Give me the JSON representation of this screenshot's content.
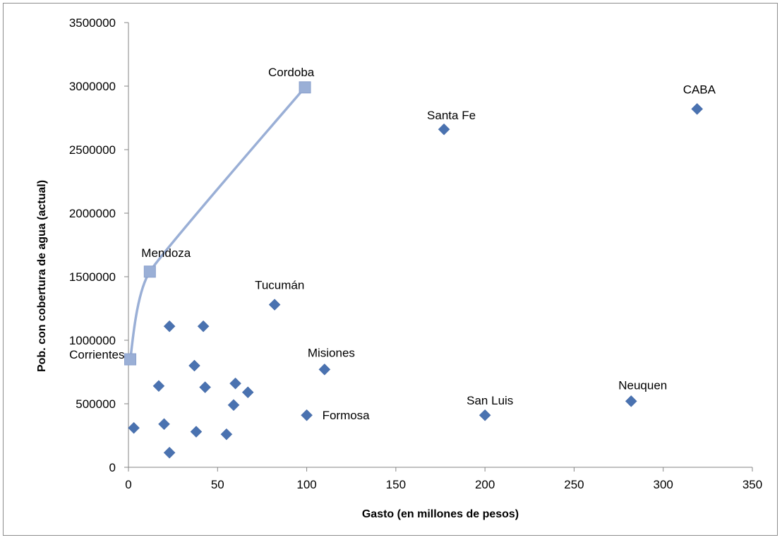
{
  "chart_data": {
    "type": "scatter",
    "xlabel": "Gasto  (en millones de pesos)",
    "ylabel": "Pob. con cobertura de agua (actual)",
    "xlim": [
      0,
      350
    ],
    "ylim": [
      0,
      3500000
    ],
    "x_ticks": [
      "0",
      "50",
      "100",
      "150",
      "200",
      "250",
      "300",
      "350"
    ],
    "y_ticks": [
      "0",
      "500000",
      "1000000",
      "1500000",
      "2000000",
      "2500000",
      "3000000",
      "3500000"
    ],
    "grid": false,
    "legend": "none",
    "colors": {
      "diamond": "#4a72b0",
      "line": "#9aafd6",
      "square": "#9aafd6"
    },
    "series": [
      {
        "marker": "diamond",
        "points": [
          {
            "x": 319,
            "y": 2820000,
            "label": "CABA"
          },
          {
            "x": 177,
            "y": 2660000,
            "label": "Santa Fe"
          },
          {
            "x": 82,
            "y": 1280000,
            "label": "Tucumán"
          },
          {
            "x": 110,
            "y": 770000,
            "label": "Misiones"
          },
          {
            "x": 100,
            "y": 410000,
            "label": "Formosa"
          },
          {
            "x": 200,
            "y": 410000,
            "label": "San Luis"
          },
          {
            "x": 282,
            "y": 520000,
            "label": "Neuquen"
          },
          {
            "x": 23,
            "y": 1110000,
            "label": ""
          },
          {
            "x": 42,
            "y": 1110000,
            "label": ""
          },
          {
            "x": 37,
            "y": 800000,
            "label": ""
          },
          {
            "x": 17,
            "y": 640000,
            "label": ""
          },
          {
            "x": 43,
            "y": 630000,
            "label": ""
          },
          {
            "x": 60,
            "y": 660000,
            "label": ""
          },
          {
            "x": 67,
            "y": 590000,
            "label": ""
          },
          {
            "x": 59,
            "y": 490000,
            "label": ""
          },
          {
            "x": 3,
            "y": 310000,
            "label": ""
          },
          {
            "x": 20,
            "y": 340000,
            "label": ""
          },
          {
            "x": 38,
            "y": 280000,
            "label": ""
          },
          {
            "x": 55,
            "y": 260000,
            "label": ""
          },
          {
            "x": 23,
            "y": 115000,
            "label": ""
          }
        ]
      },
      {
        "marker": "square",
        "line": "smooth",
        "points": [
          {
            "x": 1,
            "y": 850000,
            "label": "Corrientes"
          },
          {
            "x": 12,
            "y": 1540000,
            "label": "Mendoza"
          },
          {
            "x": 99,
            "y": 2990000,
            "label": "Cordoba"
          }
        ]
      }
    ]
  }
}
